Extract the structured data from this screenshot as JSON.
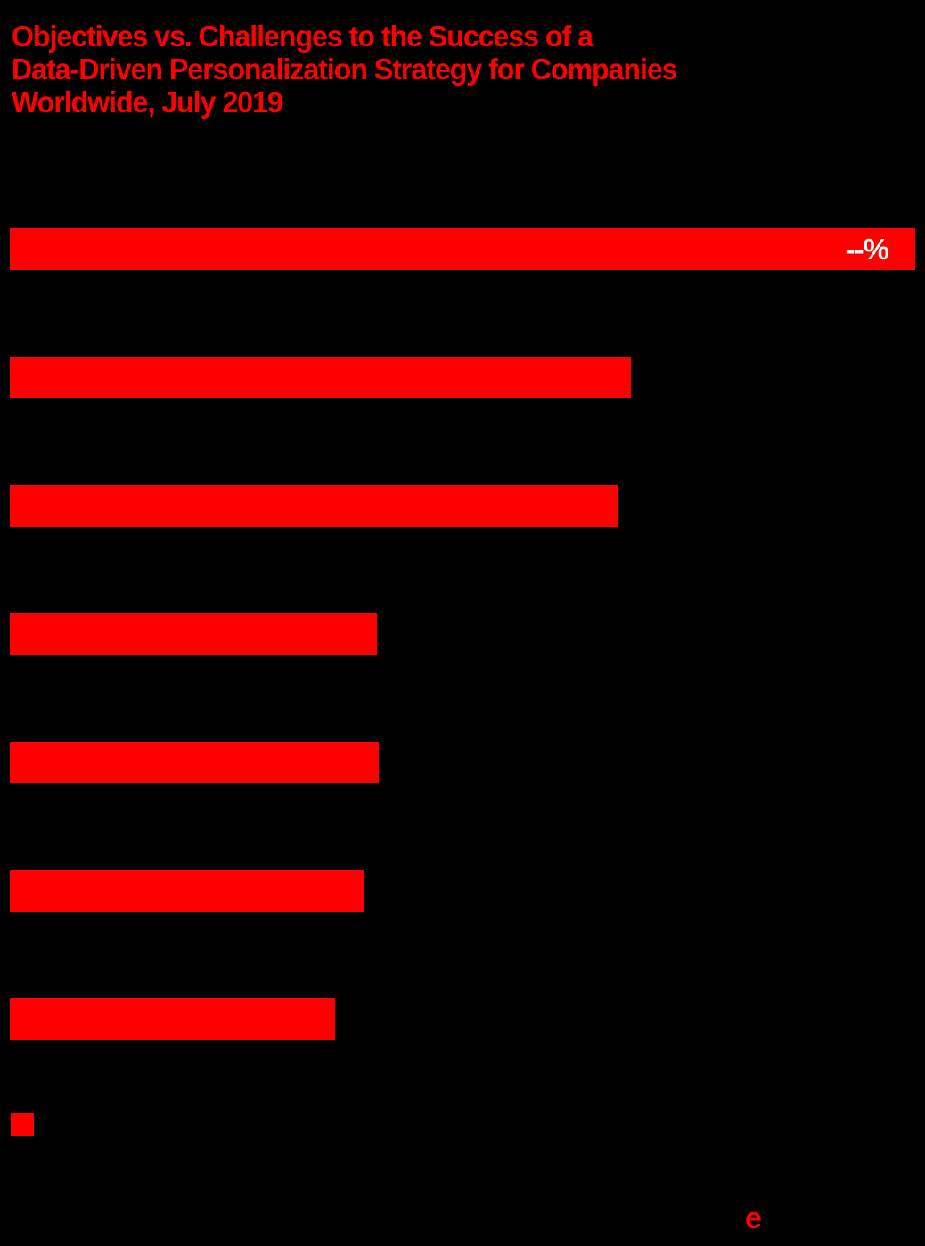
{
  "title": {
    "lines": [
      "Objectives vs. Challenges to the Success of a",
      "Data-Driven Personalization Strategy for Companies",
      "Worldwide, July 2019"
    ]
  },
  "colors": {
    "background": "#000000",
    "accent_red": "#ff0000",
    "bar_value_text": "#ffffff"
  },
  "chart_data": {
    "type": "bar",
    "orientation": "horizontal",
    "title": "Objectives vs. Challenges to the Success of a Data-Driven Personalization Strategy for Companies Worldwide, July 2019",
    "category_labels_visible": false,
    "axes_visible": false,
    "gridlines": false,
    "bars": [
      {
        "length_pct_of_max": 100.0,
        "value_label": "--%"
      },
      {
        "length_pct_of_max": 68.6,
        "value_label": ""
      },
      {
        "length_pct_of_max": 67.2,
        "value_label": ""
      },
      {
        "length_pct_of_max": 40.6,
        "value_label": ""
      },
      {
        "length_pct_of_max": 40.7,
        "value_label": ""
      },
      {
        "length_pct_of_max": 39.2,
        "value_label": ""
      },
      {
        "length_pct_of_max": 35.9,
        "value_label": ""
      }
    ],
    "legend": {
      "position": "bottom-left",
      "entries": [
        {
          "swatch_color": "#ff0000",
          "label": ""
        }
      ]
    }
  },
  "footer": {
    "logo_text": "e"
  }
}
